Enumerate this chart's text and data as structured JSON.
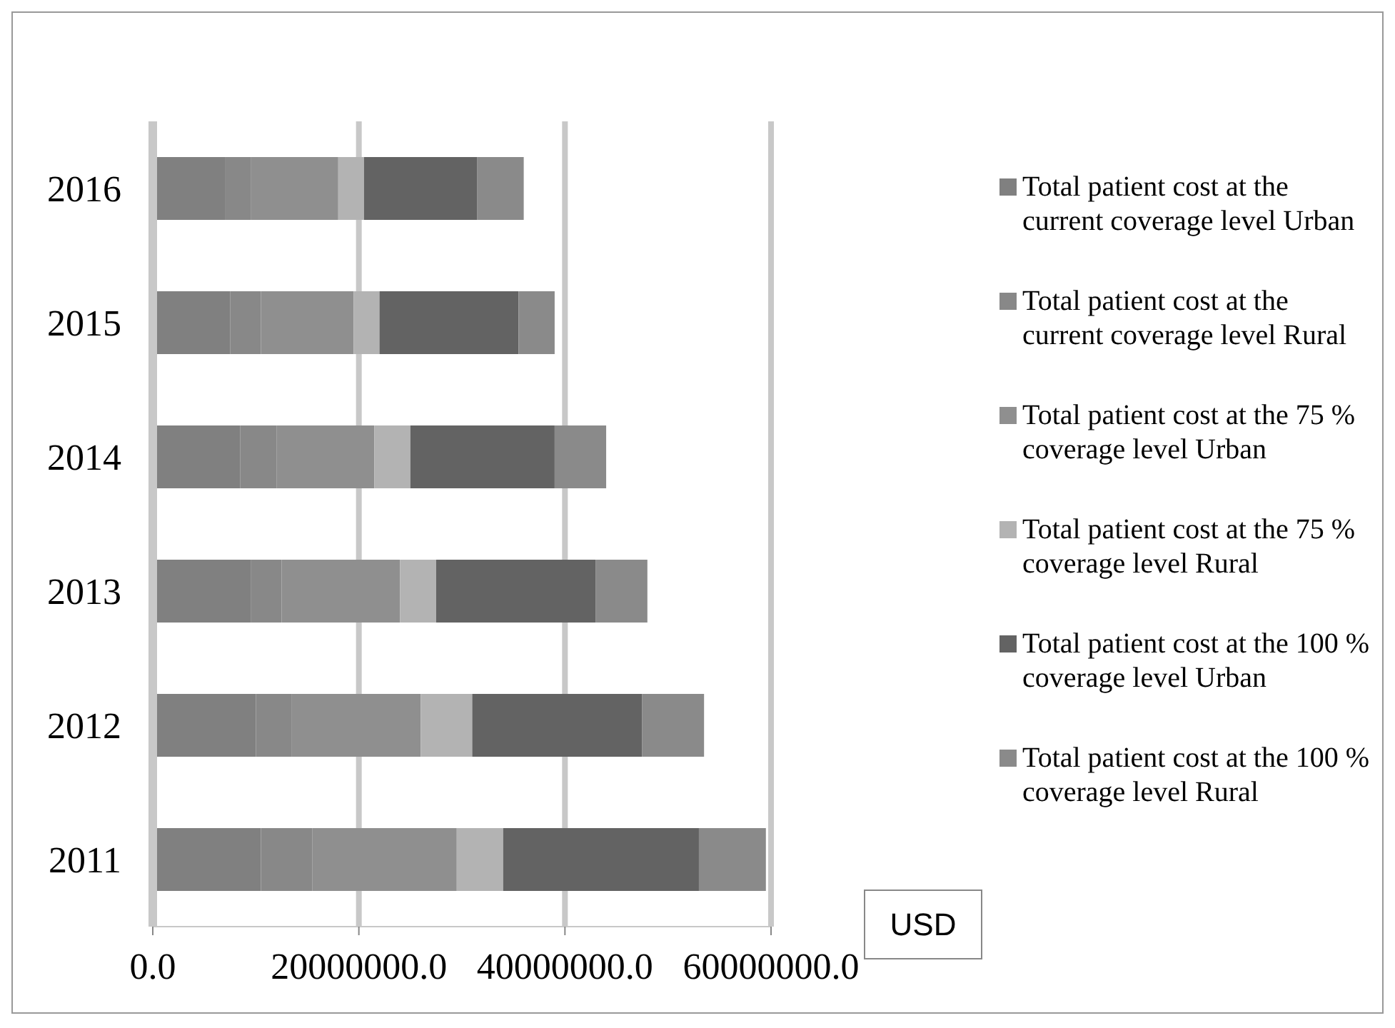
{
  "chart_data": {
    "type": "bar",
    "orientation": "horizontal",
    "stacked": true,
    "categories": [
      "2016",
      "2015",
      "2014",
      "2013",
      "2012",
      "2011"
    ],
    "series": [
      {
        "name": "Total patient cost at the current coverage level Urban",
        "color": "#808080",
        "values": [
          7000000,
          7500000,
          8500000,
          9500000,
          10000000,
          10500000
        ]
      },
      {
        "name": "Total patient cost at the current coverage level Rural",
        "color": "#888888",
        "values": [
          2500000,
          3000000,
          3500000,
          3000000,
          3500000,
          5000000
        ]
      },
      {
        "name": "Total patient cost at the 75 % coverage level Urban",
        "color": "#8f8f8f",
        "values": [
          8500000,
          9000000,
          9500000,
          11500000,
          12500000,
          14000000
        ]
      },
      {
        "name": "Total patient cost at the 75 % coverage level Rural",
        "color": "#b3b3b3",
        "values": [
          2500000,
          2500000,
          3500000,
          3500000,
          5000000,
          4500000
        ]
      },
      {
        "name": "Total patient cost at the 100 % coverage level Urban",
        "color": "#636363",
        "values": [
          11000000,
          13500000,
          14000000,
          15500000,
          16500000,
          19000000
        ]
      },
      {
        "name": "Total patient cost at the 100 % coverage level Rural",
        "color": "#8a8a8a",
        "values": [
          4500000,
          3500000,
          5000000,
          5000000,
          6000000,
          6500000
        ]
      }
    ],
    "xlabel": "USD",
    "xlim": [
      0,
      60000000
    ],
    "xticks": [
      {
        "value": 0,
        "label": "0.0"
      },
      {
        "value": 20000000,
        "label": "20000000.0"
      },
      {
        "value": 40000000,
        "label": "40000000.0"
      },
      {
        "value": 60000000,
        "label": "60000000.0"
      }
    ],
    "grid": "x",
    "legend": "right"
  }
}
